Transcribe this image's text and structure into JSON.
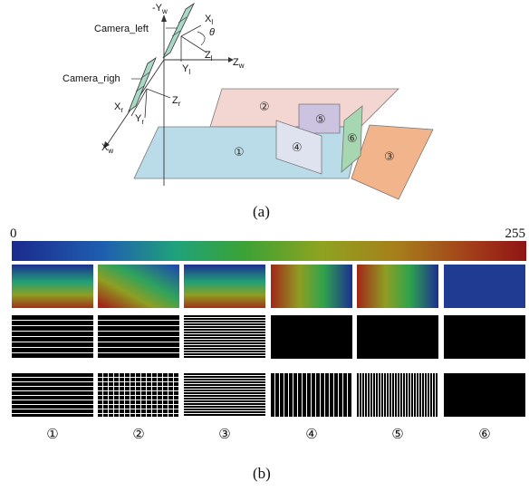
{
  "figure_a": {
    "caption": "(a)",
    "axes": {
      "neg_y_w": "-Y",
      "neg_y_w_sub": "w",
      "z_w": "Z",
      "z_w_sub": "w",
      "x_w": "X",
      "x_w_sub": "w",
      "x_l": "X",
      "x_l_sub": "l",
      "y_l": "Y",
      "y_l_sub": "l",
      "z_l": "Z",
      "z_l_sub": "l",
      "x_r": "X",
      "x_r_sub": "r",
      "y_r": "Y",
      "y_r_sub": "r",
      "z_r": "Z",
      "z_r_sub": "r",
      "theta": "θ"
    },
    "cameras": {
      "left": "Camera_left",
      "right": "Camera_righ"
    },
    "planes": [
      {
        "label": "①",
        "color": "#b9dce8"
      },
      {
        "label": "②",
        "color": "#f3d6d2"
      },
      {
        "label": "③",
        "color": "#f2b48a"
      },
      {
        "label": "④",
        "color": "#dfe3ef"
      },
      {
        "label": "⑤",
        "color": "#cbc3df"
      },
      {
        "label": "⑥",
        "color": "#a6d7b0"
      }
    ]
  },
  "figure_b": {
    "caption": "(b)",
    "colorbar": {
      "min": "0",
      "max": "255"
    },
    "columns": [
      "①",
      "②",
      "③",
      "④",
      "⑤",
      "⑥"
    ]
  }
}
